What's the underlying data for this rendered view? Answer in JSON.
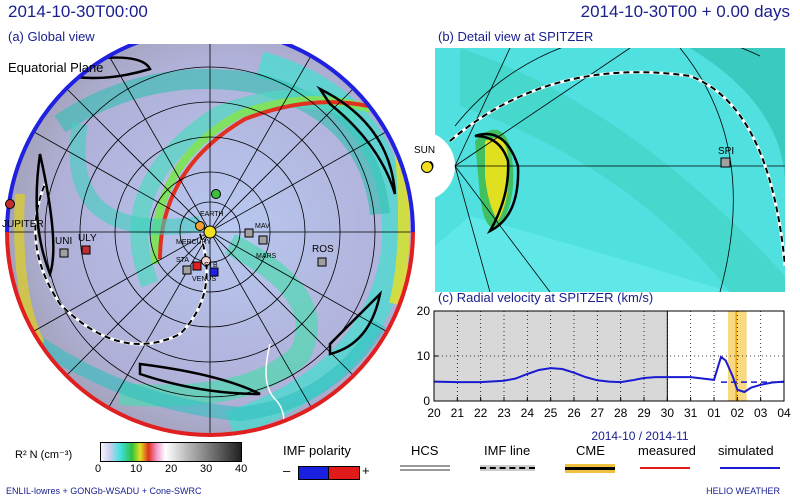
{
  "header": {
    "datetime": "2014-10-30T00:00",
    "forecast": "2014-10-30T00 + 0.00 days"
  },
  "global_view": {
    "label": "(a) Global view",
    "plane": "Equatorial Plane",
    "planets": [
      {
        "name": "EARTH",
        "color": "#3fbf3f"
      },
      {
        "name": "MERCURY",
        "color": "#f0a030"
      },
      {
        "name": "VENUS",
        "color": "#e0e0e0"
      },
      {
        "name": "MARS",
        "color": "#c84020"
      },
      {
        "name": "JUPITER",
        "color": "#c03030"
      }
    ],
    "spacecraft": [
      {
        "name": "SPI"
      },
      {
        "name": "MAV"
      },
      {
        "name": "MARS"
      },
      {
        "name": "ROS"
      },
      {
        "name": "UNI"
      },
      {
        "name": "ULY"
      },
      {
        "name": "STB"
      },
      {
        "name": "STA"
      },
      {
        "name": "MERCURY"
      },
      {
        "name": "VENUS"
      },
      {
        "name": "EARTH"
      }
    ]
  },
  "detail_view": {
    "label": "(b) Detail view at SPITZER",
    "sun_label": "SUN",
    "target_label": "SPI"
  },
  "chart_data": {
    "type": "line",
    "title": "(c) Radial velocity at SPITZER (km/s)",
    "xlabel": "2014-10 / 2014-11",
    "x_ticks": [
      "20",
      "21",
      "22",
      "23",
      "24",
      "25",
      "26",
      "27",
      "28",
      "29",
      "30",
      "31",
      "01",
      "02",
      "03",
      "04"
    ],
    "ylim": [
      0,
      20
    ],
    "y_ticks": [
      0,
      10,
      20
    ],
    "series": [
      {
        "name": "simulated",
        "color": "#1a1ad0",
        "x": [
          20,
          21,
          22,
          23,
          23.5,
          24,
          24.5,
          25,
          25.5,
          26,
          26.5,
          27,
          27.5,
          28,
          28.5,
          29,
          29.5,
          30,
          30.5,
          31,
          31.5,
          32,
          32.3,
          32.5,
          32.8,
          33,
          33.3,
          33.6,
          34,
          34.5,
          35
        ],
        "y": [
          4.3,
          4.2,
          4.2,
          4.5,
          5.0,
          6.0,
          6.9,
          7.3,
          7.1,
          6.3,
          5.3,
          4.6,
          4.3,
          4.2,
          4.6,
          5.1,
          5.3,
          5.3,
          5.3,
          5.3,
          5.0,
          4.7,
          9.8,
          9.0,
          5.5,
          2.5,
          2.0,
          3.0,
          3.6,
          4.1,
          4.3
        ]
      }
    ],
    "hcs_dashed": {
      "x": [
        32.3,
        35
      ],
      "y": [
        4.2,
        4.2
      ]
    },
    "cme_band": [
      32.6,
      33.4
    ],
    "shaded_region": [
      20,
      30
    ]
  },
  "colorbar": {
    "label": "R² N (cm⁻³)",
    "ticks": [
      "0",
      "10",
      "20",
      "30",
      "40"
    ]
  },
  "legend": {
    "imf_polarity": "IMF polarity",
    "minus": "–",
    "plus": "+",
    "hcs": "HCS",
    "imf_line": "IMF line",
    "cme": "CME",
    "measured": "measured",
    "simulated": "simulated"
  },
  "footer": {
    "left": "ENLIL-lowres + GONGb-WSADU + Cone-SWRC",
    "right": "HELIO WEATHER"
  }
}
